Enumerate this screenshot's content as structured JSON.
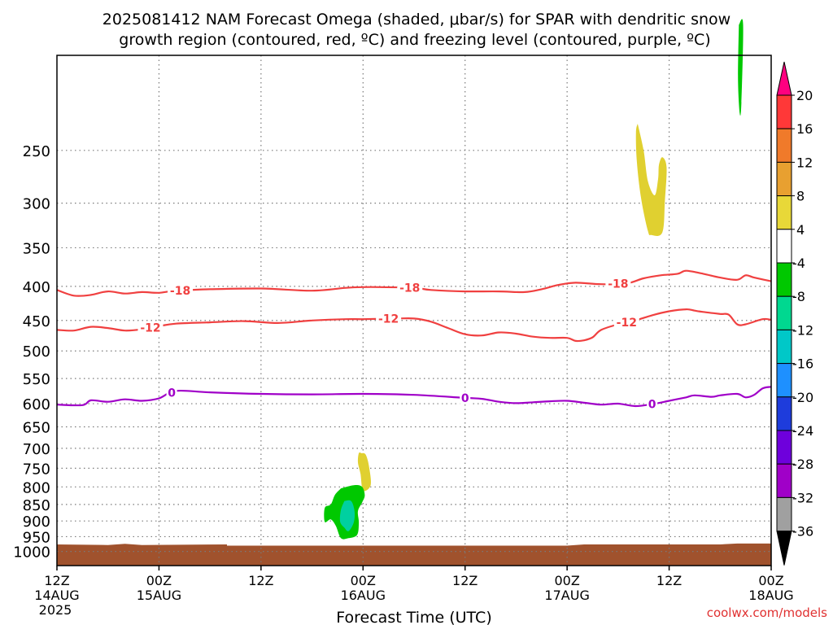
{
  "title": {
    "line1": "2025081412 NAM Forecast Omega (shaded, μbar/s) for SPAR with dendritic snow",
    "line2": "growth region (contoured, red, ºC) and freezing level (contoured, purple, ºC)"
  },
  "credit": "coolwx.com/models",
  "chart_data": {
    "type": "contour",
    "title": "2025081412 NAM Forecast Omega (shaded, μbar/s) for SPAR with dendritic snow growth region (contoured, red, ºC) and freezing level (contoured, purple, ºC)",
    "xlabel": "Forecast Time (UTC)",
    "ylabel": "",
    "x_range_hours": [
      0,
      84
    ],
    "y_range_mb": [
      1050,
      180
    ],
    "y_scale": "log",
    "grid": true,
    "y_ticks": [
      250,
      300,
      350,
      400,
      450,
      500,
      550,
      600,
      650,
      700,
      750,
      800,
      850,
      900,
      950,
      1000
    ],
    "x_ticks": [
      {
        "hour": 0,
        "l1": "12Z",
        "l2": "14AUG",
        "l3": "2025"
      },
      {
        "hour": 12,
        "l1": "00Z",
        "l2": "15AUG",
        "l3": ""
      },
      {
        "hour": 24,
        "l1": "12Z",
        "l2": "",
        "l3": ""
      },
      {
        "hour": 36,
        "l1": "00Z",
        "l2": "16AUG",
        "l3": ""
      },
      {
        "hour": 48,
        "l1": "12Z",
        "l2": "",
        "l3": ""
      },
      {
        "hour": 60,
        "l1": "00Z",
        "l2": "17AUG",
        "l3": ""
      },
      {
        "hour": 72,
        "l1": "12Z",
        "l2": "",
        "l3": ""
      },
      {
        "hour": 84,
        "l1": "00Z",
        "l2": "18AUG",
        "l3": ""
      }
    ],
    "colorbar": {
      "labels": [
        "20",
        "16",
        "12",
        "8",
        "4",
        "-4",
        "-8",
        "-12",
        "-16",
        "-20",
        "-24",
        "-28",
        "-32",
        "-36"
      ],
      "colors": [
        "#ff0080",
        "#ff3838",
        "#f07a2a",
        "#e8a030",
        "#e8d838",
        "#ffffff",
        "#00c800",
        "#00d890",
        "#00c8c8",
        "#1e90ff",
        "#1e3cdc",
        "#6e00dc",
        "#a000c8",
        "#a0a0a0",
        "#000000"
      ]
    },
    "surface_pressure": [
      [
        0,
        976
      ],
      [
        6,
        978
      ],
      [
        8,
        974
      ],
      [
        10,
        978
      ],
      [
        20,
        976
      ],
      [
        20,
        980
      ],
      [
        60,
        980
      ],
      [
        62,
        976
      ],
      [
        78,
        976
      ],
      [
        80,
        973
      ],
      [
        84,
        973
      ]
    ],
    "series": [
      {
        "name": "",
        "label": "-18",
        "color": "#f04040",
        "label_hours": [
          14.5,
          41.5,
          66
        ],
        "points": [
          [
            0,
            405
          ],
          [
            2,
            413
          ],
          [
            4,
            412
          ],
          [
            6,
            407
          ],
          [
            8,
            410
          ],
          [
            10,
            408
          ],
          [
            12,
            409
          ],
          [
            14,
            406
          ],
          [
            18,
            404
          ],
          [
            24,
            403
          ],
          [
            30,
            406
          ],
          [
            34,
            402
          ],
          [
            36,
            401
          ],
          [
            38,
            401
          ],
          [
            42,
            402
          ],
          [
            44,
            405
          ],
          [
            48,
            407
          ],
          [
            52,
            407
          ],
          [
            55,
            408
          ],
          [
            57,
            404
          ],
          [
            59,
            398
          ],
          [
            61,
            395
          ],
          [
            64,
            397
          ],
          [
            67,
            396
          ],
          [
            69,
            389
          ],
          [
            71,
            385
          ],
          [
            73,
            383
          ],
          [
            74,
            379
          ],
          [
            76,
            383
          ],
          [
            78,
            388
          ],
          [
            80,
            391
          ],
          [
            81,
            385
          ],
          [
            82,
            388
          ],
          [
            84,
            393
          ]
        ]
      },
      {
        "name": "",
        "label": "-12",
        "color": "#f04040",
        "label_hours": [
          11,
          39,
          67
        ],
        "points": [
          [
            0,
            465
          ],
          [
            2,
            466
          ],
          [
            4,
            460
          ],
          [
            6,
            462
          ],
          [
            8,
            466
          ],
          [
            10,
            464
          ],
          [
            12,
            459
          ],
          [
            14,
            455
          ],
          [
            18,
            453
          ],
          [
            22,
            451
          ],
          [
            26,
            454
          ],
          [
            30,
            450
          ],
          [
            34,
            448
          ],
          [
            36,
            448
          ],
          [
            40,
            447
          ],
          [
            42,
            447
          ],
          [
            44,
            452
          ],
          [
            46,
            462
          ],
          [
            48,
            472
          ],
          [
            50,
            474
          ],
          [
            52,
            469
          ],
          [
            54,
            471
          ],
          [
            56,
            476
          ],
          [
            58,
            478
          ],
          [
            60,
            478
          ],
          [
            61,
            483
          ],
          [
            62,
            482
          ],
          [
            63,
            477
          ],
          [
            64,
            465
          ],
          [
            66,
            456
          ],
          [
            68,
            450
          ],
          [
            70,
            442
          ],
          [
            72,
            436
          ],
          [
            74,
            433
          ],
          [
            75,
            435
          ],
          [
            76,
            437
          ],
          [
            78,
            440
          ],
          [
            79,
            441
          ],
          [
            80,
            456
          ],
          [
            81,
            456
          ],
          [
            83,
            448
          ],
          [
            84,
            449
          ]
        ]
      },
      {
        "name": "",
        "label": "0",
        "color": "#a000c8",
        "label_hours": [
          13.5,
          48,
          70
        ],
        "points": [
          [
            0,
            602
          ],
          [
            3,
            603
          ],
          [
            4,
            593
          ],
          [
            6,
            596
          ],
          [
            8,
            591
          ],
          [
            10,
            594
          ],
          [
            12,
            589
          ],
          [
            14,
            574
          ],
          [
            18,
            577
          ],
          [
            24,
            580
          ],
          [
            30,
            581
          ],
          [
            36,
            580
          ],
          [
            42,
            582
          ],
          [
            48,
            588
          ],
          [
            50,
            590
          ],
          [
            52,
            596
          ],
          [
            54,
            599
          ],
          [
            56,
            597
          ],
          [
            58,
            595
          ],
          [
            60,
            594
          ],
          [
            62,
            598
          ],
          [
            64,
            602
          ],
          [
            66,
            600
          ],
          [
            68,
            605
          ],
          [
            70,
            601
          ],
          [
            72,
            594
          ],
          [
            74,
            587
          ],
          [
            75,
            583
          ],
          [
            77,
            586
          ],
          [
            78,
            583
          ],
          [
            80,
            580
          ],
          [
            81,
            587
          ],
          [
            82,
            582
          ],
          [
            83,
            569
          ],
          [
            84,
            566
          ]
        ]
      }
    ],
    "shaded_regions": [
      {
        "value_range": [
          4,
          8
        ],
        "color": "#e0d030",
        "points": [
          [
            68.3,
            228
          ],
          [
            69,
            250
          ],
          [
            69.5,
            278
          ],
          [
            70.3,
            292
          ],
          [
            70.7,
            276
          ],
          [
            70.8,
            263
          ],
          [
            71.2,
            256
          ],
          [
            71.7,
            265
          ],
          [
            71.5,
            298
          ],
          [
            71.2,
            332
          ],
          [
            69.9,
            335
          ],
          [
            69.5,
            330
          ],
          [
            68.7,
            295
          ],
          [
            68.2,
            260
          ],
          [
            68.1,
            235
          ]
        ]
      },
      {
        "value_range": [
          4,
          8
        ],
        "color": "#e0d030",
        "points": [
          [
            35.8,
            712
          ],
          [
            36.3,
            715
          ],
          [
            36.7,
            745
          ],
          [
            36.9,
            795
          ],
          [
            36.0,
            810
          ],
          [
            35.7,
            765
          ],
          [
            35.4,
            735
          ],
          [
            35.5,
            712
          ]
        ]
      },
      {
        "value_range": [
          -8,
          -4
        ],
        "color": "#00c800",
        "points": [
          [
            33.4,
            804
          ],
          [
            35.0,
            795
          ],
          [
            35.9,
            800
          ],
          [
            36.2,
            824
          ],
          [
            35.9,
            844
          ],
          [
            35.4,
            870
          ],
          [
            35.5,
            905
          ],
          [
            35.3,
            944
          ],
          [
            34.3,
            955
          ],
          [
            33.4,
            955
          ],
          [
            32.8,
            915
          ],
          [
            32.2,
            895
          ],
          [
            31.5,
            903
          ],
          [
            31.5,
            860
          ],
          [
            32.2,
            850
          ],
          [
            32.7,
            822
          ]
        ]
      },
      {
        "value_range": [
          -12,
          -8
        ],
        "color": "#00d0a0",
        "points": [
          [
            33.8,
            840
          ],
          [
            34.6,
            840
          ],
          [
            35.0,
            870
          ],
          [
            34.9,
            905
          ],
          [
            34.3,
            932
          ],
          [
            33.8,
            921
          ],
          [
            33.3,
            902
          ],
          [
            33.4,
            866
          ]
        ]
      },
      {
        "value_range": [
          -8,
          -4
        ],
        "color": "#00c800",
        "points": [
          [
            80.2,
            162
          ],
          [
            80.7,
            162
          ],
          [
            80.5,
            212
          ],
          [
            80.3,
            220
          ],
          [
            80.1,
            195
          ]
        ]
      }
    ]
  }
}
